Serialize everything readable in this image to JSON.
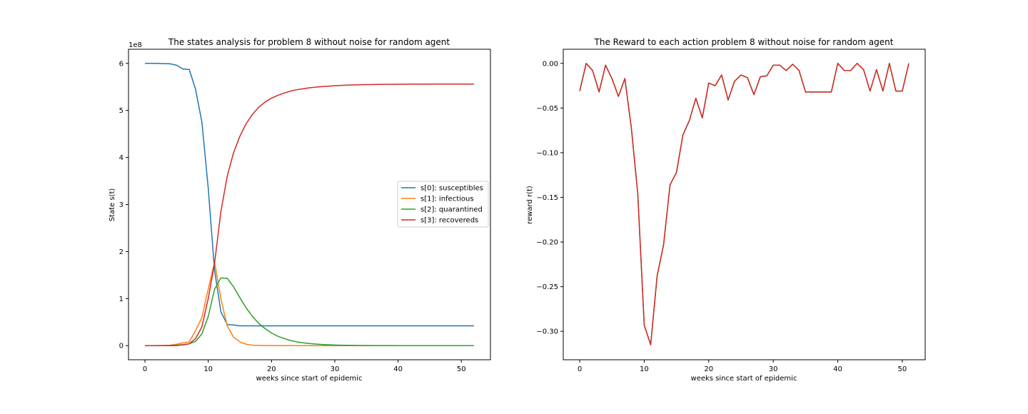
{
  "chart_data": [
    {
      "type": "line",
      "title": "The states analysis for problem 8 without noise for random agent",
      "xlabel": "weeks since start of epidemic",
      "ylabel": "State s(t)",
      "offset_text": "1e8",
      "xlim": [
        -2.6,
        54.6
      ],
      "ylim": [
        -0.3,
        6.3
      ],
      "xticks": [
        0,
        10,
        20,
        30,
        40,
        50
      ],
      "yticks": [
        0,
        1,
        2,
        3,
        4,
        5,
        6
      ],
      "legend_position": "center-right",
      "x": [
        0,
        1,
        2,
        3,
        4,
        5,
        6,
        7,
        8,
        9,
        10,
        11,
        12,
        13,
        14,
        15,
        16,
        17,
        18,
        19,
        20,
        21,
        22,
        23,
        24,
        25,
        26,
        27,
        28,
        29,
        30,
        31,
        32,
        33,
        34,
        35,
        36,
        37,
        38,
        39,
        40,
        41,
        42,
        43,
        44,
        45,
        46,
        47,
        48,
        49,
        50,
        51,
        52
      ],
      "series": [
        {
          "name": "s[0]: susceptibles",
          "color": "#1f77b4",
          "values": [
            6.0,
            6.0,
            5.998,
            5.995,
            5.99,
            5.96,
            5.88,
            5.87,
            5.45,
            4.75,
            3.35,
            1.6,
            0.72,
            0.45,
            0.44,
            0.42,
            0.42,
            0.42,
            0.42,
            0.42,
            0.42,
            0.42,
            0.42,
            0.42,
            0.42,
            0.42,
            0.42,
            0.42,
            0.42,
            0.42,
            0.42,
            0.42,
            0.42,
            0.42,
            0.42,
            0.42,
            0.42,
            0.42,
            0.42,
            0.42,
            0.42,
            0.42,
            0.42,
            0.42,
            0.42,
            0.42,
            0.42,
            0.42,
            0.42,
            0.42,
            0.42,
            0.42,
            0.42
          ]
        },
        {
          "name": "s[1]: infectious",
          "color": "#ff7f0e",
          "values": [
            0,
            0,
            0.001,
            0.003,
            0.01,
            0.03,
            0.06,
            0.08,
            0.32,
            0.6,
            1.2,
            1.78,
            1.0,
            0.42,
            0.18,
            0.08,
            0.03,
            0.01,
            0.005,
            0.002,
            0.001,
            0,
            0,
            0,
            0,
            0,
            0,
            0,
            0,
            0,
            0,
            0,
            0,
            0,
            0,
            0,
            0,
            0,
            0,
            0,
            0,
            0,
            0,
            0,
            0,
            0,
            0,
            0,
            0,
            0,
            0,
            0,
            0
          ]
        },
        {
          "name": "s[2]: quarantined",
          "color": "#2ca02c",
          "values": [
            0,
            0,
            0,
            0.001,
            0.003,
            0.01,
            0.02,
            0.04,
            0.09,
            0.25,
            0.62,
            1.2,
            1.44,
            1.43,
            1.25,
            1.02,
            0.8,
            0.62,
            0.47,
            0.36,
            0.27,
            0.2,
            0.15,
            0.11,
            0.08,
            0.06,
            0.045,
            0.033,
            0.025,
            0.018,
            0.013,
            0.01,
            0.007,
            0.005,
            0.004,
            0.003,
            0.002,
            0.0015,
            0.001,
            0.001,
            0.0005,
            0.0005,
            0,
            0,
            0,
            0,
            0,
            0,
            0,
            0,
            0,
            0,
            0
          ]
        },
        {
          "name": "s[3]: recovereds",
          "color": "#d62728",
          "values": [
            0,
            0,
            0,
            0,
            0,
            0.003,
            0.015,
            0.04,
            0.15,
            0.4,
            1.0,
            1.75,
            2.85,
            3.6,
            4.1,
            4.45,
            4.72,
            4.92,
            5.07,
            5.18,
            5.26,
            5.32,
            5.37,
            5.41,
            5.44,
            5.46,
            5.48,
            5.495,
            5.505,
            5.515,
            5.525,
            5.532,
            5.537,
            5.541,
            5.545,
            5.548,
            5.55,
            5.552,
            5.554,
            5.555,
            5.556,
            5.557,
            5.558,
            5.558,
            5.559,
            5.559,
            5.56,
            5.56,
            5.56,
            5.56,
            5.56,
            5.56,
            5.56
          ]
        }
      ]
    },
    {
      "type": "line",
      "title": "The Reward to each action problem 8 without noise for random agent",
      "xlabel": "weeks since start of epidemic",
      "ylabel": "reward r(t)",
      "xlim": [
        -2.55,
        53.55
      ],
      "ylim": [
        -0.3318,
        0.0158
      ],
      "xticks": [
        0,
        10,
        20,
        30,
        40,
        50
      ],
      "yticks": [
        0.0,
        -0.05,
        -0.1,
        -0.15,
        -0.2,
        -0.25,
        -0.3
      ],
      "ytick_labels": [
        "0.00",
        "−0.05",
        "−0.10",
        "−0.15",
        "−0.20",
        "−0.25",
        "−0.30"
      ],
      "x": [
        0,
        1,
        2,
        3,
        4,
        5,
        6,
        7,
        8,
        9,
        10,
        11,
        12,
        13,
        14,
        15,
        16,
        17,
        18,
        19,
        20,
        21,
        22,
        23,
        24,
        25,
        26,
        27,
        28,
        29,
        30,
        31,
        32,
        33,
        34,
        35,
        36,
        37,
        38,
        39,
        40,
        41,
        42,
        43,
        44,
        45,
        46,
        47,
        48,
        49,
        50,
        51
      ],
      "series": [
        {
          "color": "#2ca02c",
          "values": [
            -0.031,
            0.0,
            -0.008,
            -0.032,
            -0.002,
            -0.017,
            -0.037,
            -0.017,
            -0.072,
            -0.146,
            -0.293,
            -0.315,
            -0.238,
            -0.203,
            -0.136,
            -0.122,
            -0.08,
            -0.064,
            -0.039,
            -0.061,
            -0.022,
            -0.025,
            -0.013,
            -0.041,
            -0.02,
            -0.013,
            -0.016,
            -0.035,
            -0.015,
            -0.014,
            -0.002,
            -0.002,
            -0.008,
            -0.001,
            -0.008,
            -0.032,
            -0.032,
            -0.032,
            -0.032,
            -0.032,
            0.0,
            -0.008,
            -0.008,
            0.0,
            -0.007,
            -0.031,
            -0.007,
            -0.031,
            0.0,
            -0.031,
            -0.031,
            0.0
          ]
        },
        {
          "color": "#d62728",
          "values": [
            -0.031,
            0.0,
            -0.008,
            -0.032,
            -0.002,
            -0.017,
            -0.037,
            -0.017,
            -0.072,
            -0.146,
            -0.293,
            -0.315,
            -0.238,
            -0.203,
            -0.136,
            -0.122,
            -0.08,
            -0.064,
            -0.039,
            -0.061,
            -0.022,
            -0.025,
            -0.013,
            -0.041,
            -0.02,
            -0.013,
            -0.016,
            -0.035,
            -0.015,
            -0.014,
            -0.002,
            -0.002,
            -0.008,
            -0.001,
            -0.008,
            -0.032,
            -0.032,
            -0.032,
            -0.032,
            -0.032,
            0.0,
            -0.008,
            -0.008,
            0.0,
            -0.007,
            -0.031,
            -0.007,
            -0.031,
            0.0,
            -0.031,
            -0.031,
            0.0
          ]
        }
      ]
    }
  ]
}
